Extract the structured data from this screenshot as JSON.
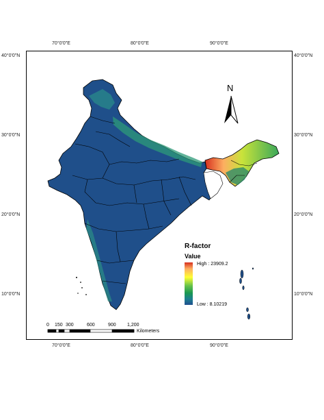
{
  "axes": {
    "top_labels": [
      "70°0'0\"E",
      "80°0'0\"E",
      "90°0'0\"E"
    ],
    "bottom_labels": [
      "70°0'0\"E",
      "80°0'0\"E",
      "90°0'0\"E"
    ],
    "left_labels": [
      "40°0'0\"N",
      "30°0'0\"N",
      "20°0'0\"N",
      "10°0'0\"N"
    ],
    "right_labels": [
      "40°0'0\"N",
      "30°0'0\"N",
      "20°0'0\"N",
      "10°0'0\"N"
    ]
  },
  "north_arrow": {
    "label": "N"
  },
  "legend": {
    "title": "R-factor",
    "subtitle": "Value",
    "high_label": "High : 23909.2",
    "low_label": "Low : 8.10219",
    "colors": [
      "#d7301f",
      "#fdae61",
      "#ffff33",
      "#66c24a",
      "#1a9850",
      "#1b7f8f",
      "#1f4f8f"
    ]
  },
  "scale_bar": {
    "ticks": [
      "0",
      "150",
      "300",
      "600",
      "900",
      "1,200"
    ],
    "unit": "Kilometers"
  }
}
